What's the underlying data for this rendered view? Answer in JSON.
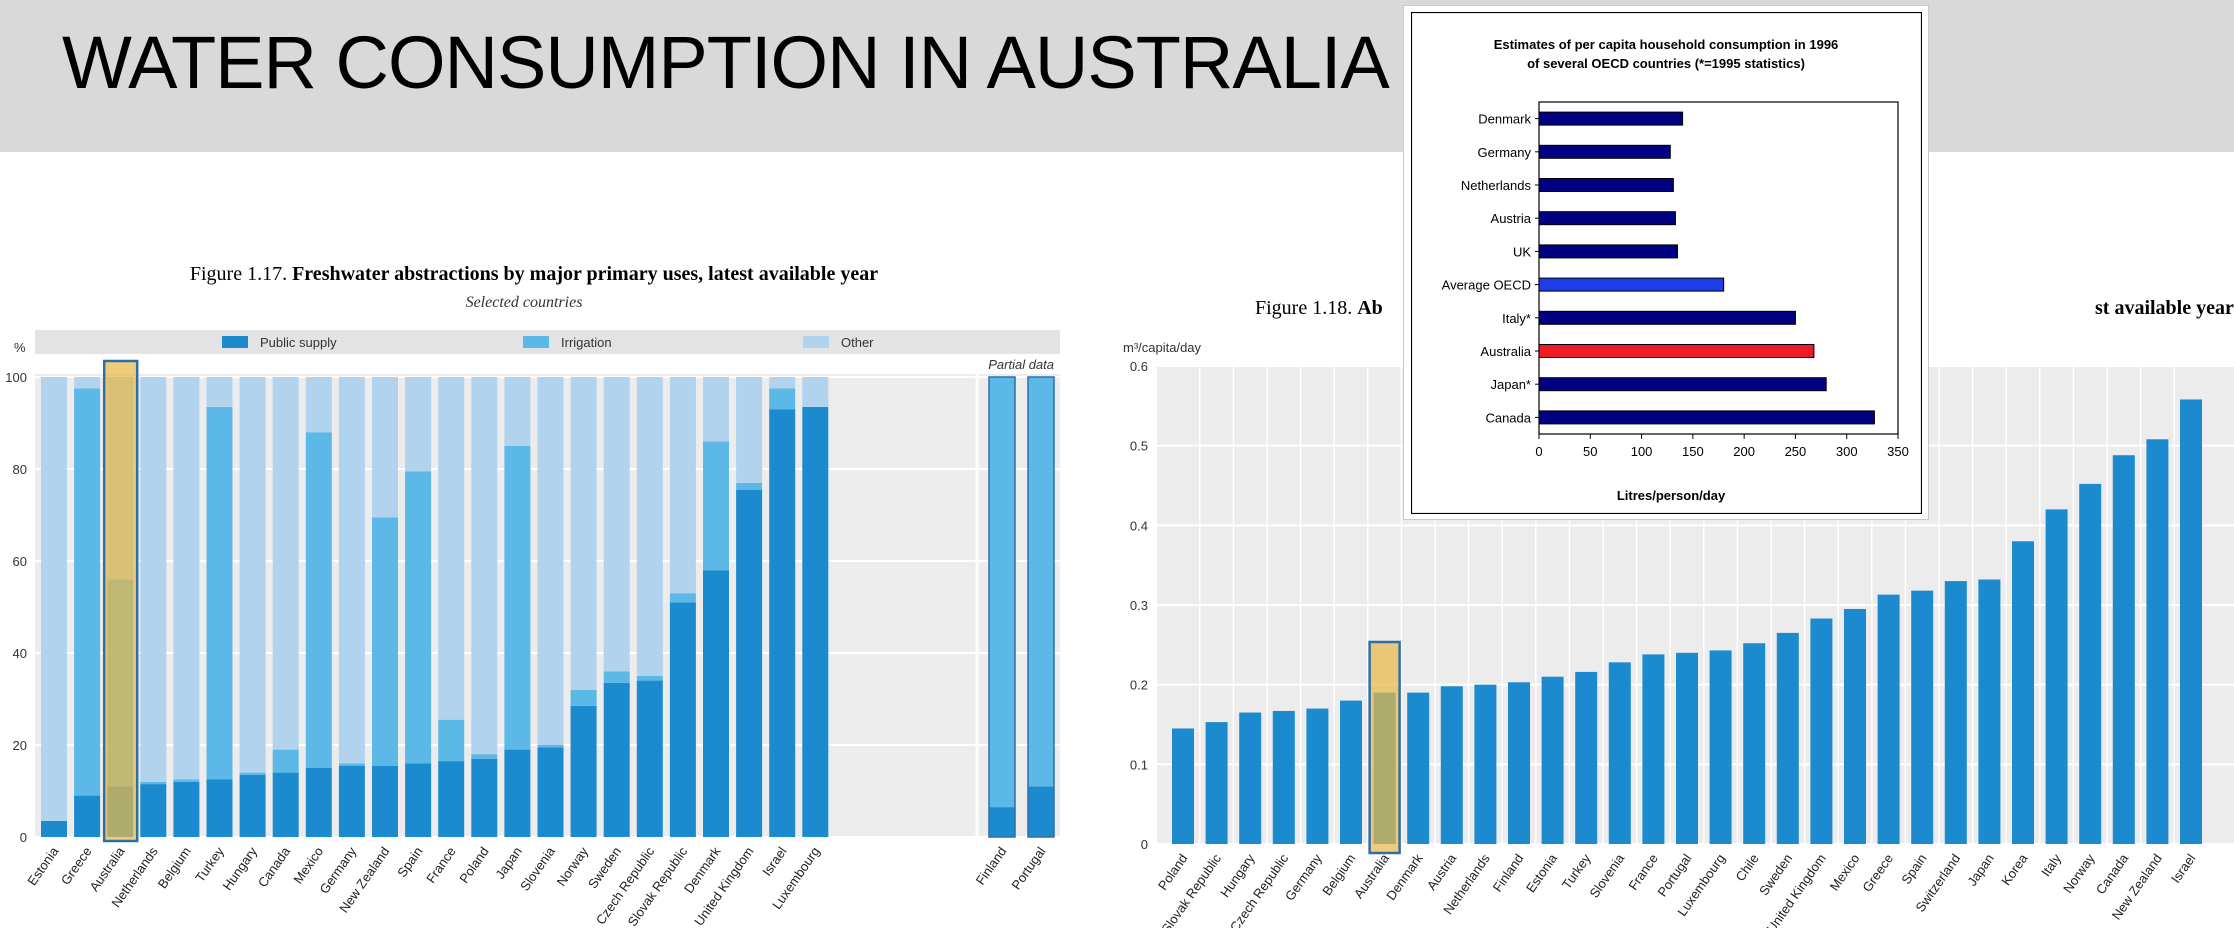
{
  "page": {
    "title": "WATER CONSUMPTION IN AUSTRALIA"
  },
  "colors": {
    "public_supply": "#1c8ace",
    "irrigation": "#5cb8e6",
    "other": "#b1d3ee",
    "highlight": "#e8b84a",
    "highlight_border": "#2f6fa8",
    "panel_bg": "#ececec",
    "inset_bar": "#000080",
    "inset_oecd": "#1f3de8",
    "inset_australia": "#ee1c25"
  },
  "chart_data": [
    {
      "id": "fig17",
      "type": "bar",
      "stacked": true,
      "figure_number": "Figure 1.17.",
      "title": "Freshwater abstractions by major primary uses, latest available year",
      "subtitle": "Selected countries",
      "ylabel": "%",
      "ylim": [
        0,
        100
      ],
      "yticks": [
        0,
        20,
        40,
        60,
        80,
        100
      ],
      "partial_label": "Partial data",
      "legend": [
        "Public supply",
        "Irrigation",
        "Other"
      ],
      "highlight": "Australia",
      "categories": [
        "Estonia",
        "Greece",
        "Australia",
        "Netherlands",
        "Belgium",
        "Turkey",
        "Hungary",
        "Canada",
        "Mexico",
        "Germany",
        "New Zealand",
        "Spain",
        "France",
        "Poland",
        "Japan",
        "Slovenia",
        "Norway",
        "Sweden",
        "Czech Republic",
        "Slovak Republic",
        "Denmark",
        "United Kingdom",
        "Israel",
        "Luxembourg"
      ],
      "series": [
        {
          "name": "Public supply",
          "values": [
            3.5,
            9,
            11,
            11.5,
            12,
            12.5,
            13.5,
            14,
            15,
            15.5,
            15.5,
            16,
            16.5,
            17,
            19,
            19.5,
            28.5,
            33.5,
            34,
            51,
            58,
            75.5,
            93,
            93.5
          ]
        },
        {
          "name": "Irrigation",
          "values": [
            0,
            88.5,
            45,
            0.5,
            0.5,
            81,
            0.5,
            5,
            73,
            0.5,
            54,
            63.5,
            9,
            1,
            66,
            0.5,
            3.5,
            2.5,
            1,
            2,
            28,
            1.5,
            4.5,
            0
          ]
        },
        {
          "name": "Other",
          "values": [
            96.5,
            2.5,
            44,
            88,
            87.5,
            6.5,
            86,
            81,
            12,
            84,
            30.5,
            20.5,
            74.5,
            82,
            15,
            80,
            68,
            64,
            65,
            47,
            14,
            23,
            2.5,
            6.5
          ]
        }
      ],
      "partial_categories": [
        "Finland",
        "Portugal"
      ],
      "partial_series": [
        {
          "name": "Public supply",
          "values": [
            6.5,
            11
          ]
        },
        {
          "name": "Irrigation",
          "values": [
            93.5,
            89
          ]
        }
      ]
    },
    {
      "id": "fig18",
      "type": "bar",
      "figure_number": "Figure 1.18.",
      "title_visible_start": "Ab",
      "title_visible_end": "st available year",
      "ylabel": "m³/capita/day",
      "ylim": [
        0,
        0.6
      ],
      "yticks": [
        "0",
        "0.1",
        "0.2",
        "0.3",
        "0.4",
        "0.5",
        "0.6"
      ],
      "highlight": "Australia",
      "categories": [
        "Poland",
        "Slovak Republic",
        "Hungary",
        "Czech Republic",
        "Germany",
        "Belgium",
        "Australia",
        "Denmark",
        "Austria",
        "Netherlands",
        "Finland",
        "Estonia",
        "Turkey",
        "Slovenia",
        "France",
        "Portugal",
        "Luxembourg",
        "Chile",
        "Sweden",
        "United Kingdom",
        "Mexico",
        "Greece",
        "Spain",
        "Switzerland",
        "Japan",
        "Korea",
        "Italy",
        "Norway",
        "Canada",
        "New Zealand",
        "Israel"
      ],
      "values": [
        0.145,
        0.153,
        0.165,
        0.167,
        0.17,
        0.18,
        0.19,
        0.19,
        0.198,
        0.2,
        0.203,
        0.21,
        0.216,
        0.228,
        0.238,
        0.24,
        0.243,
        0.252,
        0.265,
        0.283,
        0.295,
        0.313,
        0.318,
        0.33,
        0.332,
        0.38,
        0.42,
        0.452,
        0.488,
        0.508,
        0.558
      ]
    },
    {
      "id": "inset",
      "type": "bar",
      "orientation": "horizontal",
      "title_line1": "Estimates of per capita household consumption in 1996",
      "title_line2": "of several OECD countries (*=1995 statistics)",
      "xlabel": "Litres/person/day",
      "xlim": [
        0,
        350
      ],
      "xticks": [
        0,
        50,
        100,
        150,
        200,
        250,
        300,
        350
      ],
      "categories": [
        "Denmark",
        "Germany",
        "Netherlands",
        "Austria",
        "UK",
        "Average OECD",
        "Italy*",
        "Australia",
        "Japan*",
        "Canada"
      ],
      "values": [
        140,
        128,
        131,
        133,
        135,
        180,
        250,
        268,
        280,
        327
      ]
    }
  ]
}
